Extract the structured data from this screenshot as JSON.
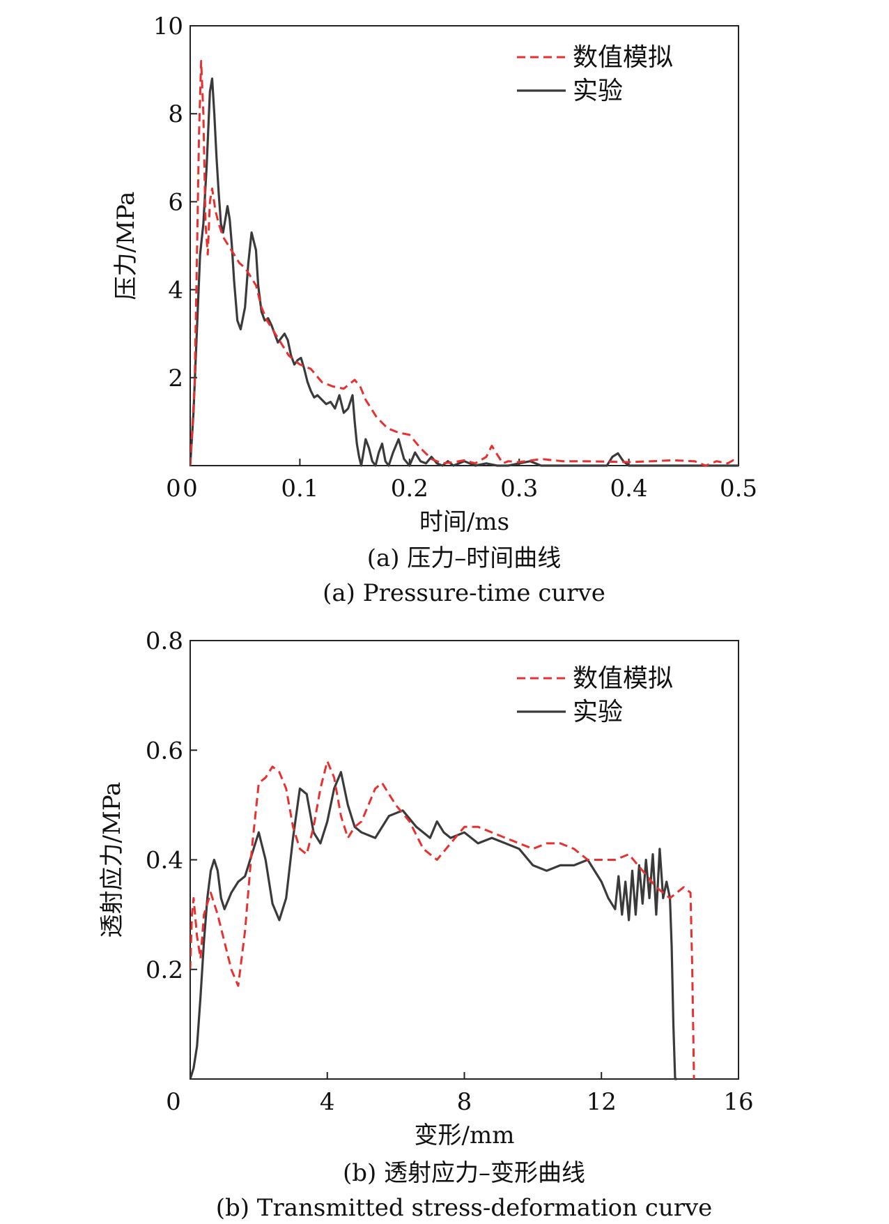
{
  "colors": {
    "simulation": "#e8302f",
    "experiment": "#3a3a3a"
  },
  "chart_data": [
    {
      "type": "line",
      "xlabel": "时间/ms",
      "ylabel": "压力/MPa",
      "xlim": [
        0,
        0.5
      ],
      "ylim": [
        0,
        10
      ],
      "xticks": [
        "0",
        "0.1",
        "0.2",
        "0.3",
        "0.4",
        "0.5"
      ],
      "yticks": [
        "2",
        "4",
        "6",
        "8",
        "10"
      ],
      "origin_label": "0",
      "caption_cn": "(a) 压力–时间曲线",
      "caption_en": "(a) Pressure-time curve",
      "legend_position": "top-right",
      "series": [
        {
          "name": "数值模拟",
          "style": "dashed",
          "x": [
            0,
            0.004,
            0.006,
            0.008,
            0.01,
            0.012,
            0.014,
            0.016,
            0.018,
            0.02,
            0.023,
            0.026,
            0.03,
            0.035,
            0.04,
            0.045,
            0.05,
            0.055,
            0.06,
            0.065,
            0.07,
            0.08,
            0.09,
            0.1,
            0.11,
            0.12,
            0.13,
            0.14,
            0.145,
            0.15,
            0.155,
            0.16,
            0.17,
            0.18,
            0.19,
            0.2,
            0.21,
            0.22,
            0.23,
            0.24,
            0.25,
            0.26,
            0.27,
            0.275,
            0.28,
            0.285,
            0.29,
            0.3,
            0.32,
            0.34,
            0.36,
            0.4,
            0.44,
            0.46,
            0.47,
            0.48,
            0.49,
            0.495,
            0.5
          ],
          "y": [
            0,
            1.8,
            4.5,
            7.5,
            9.2,
            8.0,
            5.5,
            4.8,
            6.0,
            6.3,
            5.8,
            5.5,
            5.2,
            5.0,
            4.8,
            4.6,
            4.5,
            4.3,
            4.1,
            3.6,
            3.3,
            2.9,
            2.5,
            2.3,
            2.2,
            1.9,
            1.8,
            1.75,
            1.85,
            1.95,
            1.8,
            1.5,
            1.1,
            0.85,
            0.75,
            0.7,
            0.4,
            0.15,
            0.05,
            0.08,
            0.12,
            0.05,
            0.2,
            0.45,
            0.25,
            0.05,
            0.1,
            0.08,
            0.15,
            0.1,
            0.1,
            0.08,
            0.12,
            0.1,
            0.0,
            0.1,
            0.05,
            0.12,
            0.1
          ]
        },
        {
          "name": "实验",
          "style": "solid",
          "x": [
            0,
            0.003,
            0.006,
            0.009,
            0.012,
            0.015,
            0.018,
            0.02,
            0.022,
            0.024,
            0.026,
            0.028,
            0.03,
            0.032,
            0.034,
            0.036,
            0.038,
            0.04,
            0.043,
            0.046,
            0.05,
            0.053,
            0.056,
            0.06,
            0.062,
            0.065,
            0.068,
            0.071,
            0.074,
            0.077,
            0.08,
            0.083,
            0.086,
            0.089,
            0.092,
            0.095,
            0.098,
            0.101,
            0.104,
            0.107,
            0.11,
            0.113,
            0.116,
            0.12,
            0.124,
            0.128,
            0.132,
            0.136,
            0.14,
            0.144,
            0.148,
            0.15,
            0.152,
            0.154,
            0.156,
            0.158,
            0.16,
            0.163,
            0.166,
            0.169,
            0.172,
            0.175,
            0.178,
            0.181,
            0.185,
            0.19,
            0.195,
            0.2,
            0.205,
            0.21,
            0.215,
            0.22,
            0.225,
            0.23,
            0.235,
            0.24,
            0.25,
            0.26,
            0.27,
            0.28,
            0.29,
            0.3,
            0.31,
            0.32,
            0.33,
            0.34,
            0.35,
            0.36,
            0.37,
            0.38,
            0.385,
            0.39,
            0.395,
            0.4,
            0.42,
            0.44,
            0.46,
            0.48,
            0.5
          ],
          "y": [
            0,
            1.2,
            3.0,
            4.8,
            5.5,
            6.8,
            8.5,
            8.8,
            8.0,
            7.0,
            6.2,
            5.5,
            5.3,
            5.6,
            5.9,
            5.6,
            5.0,
            4.2,
            3.3,
            3.1,
            3.6,
            4.6,
            5.3,
            4.9,
            4.1,
            3.5,
            3.3,
            3.35,
            3.2,
            3.0,
            2.8,
            2.9,
            3.0,
            2.85,
            2.5,
            2.3,
            2.4,
            2.45,
            2.2,
            1.9,
            1.7,
            1.55,
            1.6,
            1.5,
            1.4,
            1.45,
            1.3,
            1.6,
            1.2,
            1.3,
            1.6,
            1.0,
            0.5,
            0.2,
            0.0,
            0.3,
            0.6,
            0.4,
            0.1,
            0.0,
            0.3,
            0.5,
            0.1,
            0.0,
            0.3,
            0.6,
            0.15,
            0.0,
            0.3,
            0.1,
            0.05,
            0.2,
            0.05,
            0.0,
            0.1,
            0.0,
            0.1,
            0.0,
            0.05,
            0.0,
            0.0,
            0.05,
            0.1,
            0.0,
            0.0,
            0.0,
            0.0,
            0.0,
            0.0,
            0.0,
            0.2,
            0.28,
            0.1,
            0.0,
            0.0,
            0.0,
            0.0,
            0.0,
            0.0
          ]
        }
      ]
    },
    {
      "type": "line",
      "xlabel": "变形/mm",
      "ylabel": "透射应力/MPa",
      "xlim": [
        0,
        16
      ],
      "ylim": [
        0,
        0.8
      ],
      "xticks": [
        "4",
        "8",
        "12",
        "16"
      ],
      "yticks": [
        "0.2",
        "0.4",
        "0.6",
        "0.8"
      ],
      "origin_label": "0",
      "caption_cn": "(b) 透射应力–变形曲线",
      "caption_en": "(b) Transmitted stress-deformation curve",
      "legend_position": "top-right",
      "series": [
        {
          "name": "数值模拟",
          "style": "dashed",
          "x": [
            0,
            0.05,
            0.1,
            0.2,
            0.3,
            0.4,
            0.6,
            0.8,
            1.0,
            1.2,
            1.4,
            1.6,
            1.8,
            2.0,
            2.2,
            2.4,
            2.6,
            2.8,
            3.0,
            3.2,
            3.4,
            3.6,
            3.8,
            4.0,
            4.2,
            4.4,
            4.6,
            4.8,
            5.0,
            5.2,
            5.4,
            5.6,
            5.8,
            6.0,
            6.4,
            6.8,
            7.2,
            7.6,
            8.0,
            8.4,
            8.8,
            9.2,
            9.6,
            10.0,
            10.4,
            10.8,
            11.2,
            11.6,
            12.0,
            12.4,
            12.8,
            13.2,
            13.6,
            14.0,
            14.4,
            14.6,
            14.65,
            14.7
          ],
          "y": [
            0.2,
            0.3,
            0.33,
            0.26,
            0.22,
            0.3,
            0.34,
            0.3,
            0.25,
            0.2,
            0.17,
            0.27,
            0.42,
            0.54,
            0.55,
            0.57,
            0.56,
            0.53,
            0.46,
            0.42,
            0.41,
            0.46,
            0.53,
            0.58,
            0.55,
            0.48,
            0.44,
            0.46,
            0.47,
            0.5,
            0.53,
            0.54,
            0.52,
            0.5,
            0.47,
            0.42,
            0.4,
            0.43,
            0.46,
            0.46,
            0.45,
            0.44,
            0.43,
            0.42,
            0.43,
            0.43,
            0.42,
            0.4,
            0.4,
            0.4,
            0.41,
            0.38,
            0.35,
            0.33,
            0.35,
            0.34,
            0.2,
            0.0
          ]
        },
        {
          "name": "实验",
          "style": "solid",
          "x": [
            0,
            0.1,
            0.2,
            0.3,
            0.4,
            0.5,
            0.6,
            0.7,
            0.8,
            0.9,
            1.0,
            1.2,
            1.4,
            1.6,
            1.8,
            2.0,
            2.2,
            2.4,
            2.6,
            2.8,
            3.0,
            3.2,
            3.4,
            3.6,
            3.8,
            4.0,
            4.2,
            4.4,
            4.6,
            4.8,
            5.0,
            5.4,
            5.8,
            6.2,
            6.6,
            7.0,
            7.2,
            7.4,
            7.6,
            8.0,
            8.4,
            8.8,
            9.2,
            9.6,
            10.0,
            10.4,
            10.8,
            11.2,
            11.6,
            12.0,
            12.2,
            12.4,
            12.5,
            12.6,
            12.7,
            12.8,
            12.9,
            13.0,
            13.1,
            13.2,
            13.3,
            13.4,
            13.5,
            13.6,
            13.7,
            13.8,
            13.9,
            14.0,
            14.05,
            14.1,
            14.15,
            14.2
          ],
          "y": [
            0,
            0.02,
            0.06,
            0.15,
            0.25,
            0.33,
            0.38,
            0.4,
            0.38,
            0.33,
            0.31,
            0.34,
            0.36,
            0.37,
            0.41,
            0.45,
            0.4,
            0.32,
            0.29,
            0.33,
            0.44,
            0.53,
            0.52,
            0.45,
            0.43,
            0.47,
            0.53,
            0.56,
            0.5,
            0.46,
            0.45,
            0.44,
            0.48,
            0.49,
            0.46,
            0.44,
            0.47,
            0.45,
            0.44,
            0.45,
            0.43,
            0.44,
            0.43,
            0.42,
            0.39,
            0.38,
            0.39,
            0.39,
            0.4,
            0.36,
            0.33,
            0.31,
            0.37,
            0.3,
            0.36,
            0.29,
            0.38,
            0.3,
            0.39,
            0.32,
            0.4,
            0.33,
            0.41,
            0.3,
            0.42,
            0.33,
            0.36,
            0.33,
            0.24,
            0.1,
            0.0,
            0.0
          ]
        }
      ]
    }
  ]
}
